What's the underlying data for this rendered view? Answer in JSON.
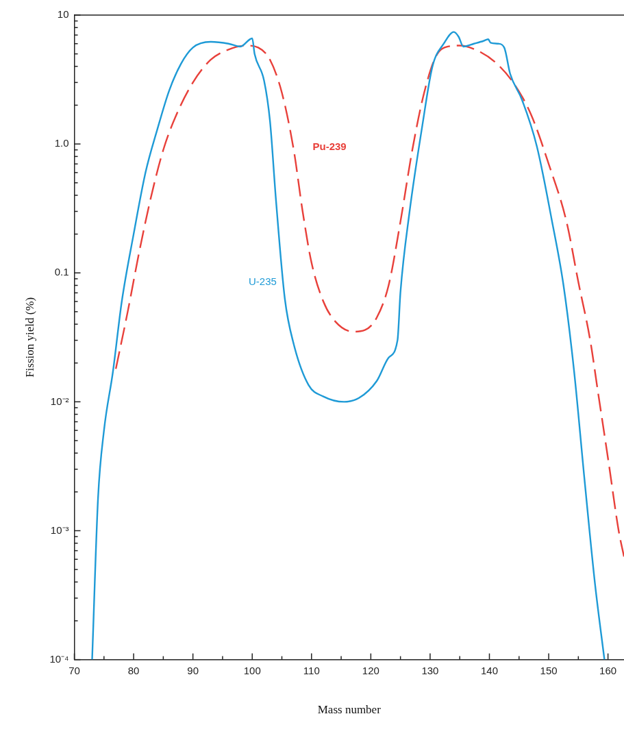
{
  "chart_data": {
    "type": "line",
    "xlabel": "Mass number",
    "ylabel": "Fission yield (%)",
    "log": "y",
    "grid": false,
    "legend": false,
    "marker": "none",
    "xlim": [
      70,
      162.7
    ],
    "ylim": [
      0.0001,
      10
    ],
    "xticks": [
      70,
      {
        "value": 75,
        "label": null
      },
      80,
      {
        "value": 85,
        "label": null
      },
      90,
      {
        "value": 95,
        "label": null
      },
      100,
      {
        "value": 105,
        "label": null
      },
      110,
      {
        "value": 115,
        "label": null
      },
      120,
      {
        "value": 125,
        "label": null
      },
      130,
      {
        "value": 135,
        "label": null
      },
      140,
      {
        "value": 145,
        "label": null
      },
      150,
      {
        "value": 155,
        "label": null
      },
      160
    ],
    "yticks": [
      {
        "value": 0.0001,
        "label": "10⁻⁴"
      },
      {
        "value": 0.0002,
        "label": null
      },
      {
        "value": 0.0003,
        "label": null
      },
      {
        "value": 0.0004,
        "label": null
      },
      {
        "value": 0.0005,
        "label": null
      },
      {
        "value": 0.0006,
        "label": null
      },
      {
        "value": 0.0007,
        "label": null
      },
      {
        "value": 0.0008,
        "label": null
      },
      {
        "value": 0.0009,
        "label": null
      },
      {
        "value": 0.001,
        "label": "10⁻³"
      },
      {
        "value": 0.002,
        "label": null
      },
      {
        "value": 0.003,
        "label": null
      },
      {
        "value": 0.004,
        "label": null
      },
      {
        "value": 0.005,
        "label": null
      },
      {
        "value": 0.006,
        "label": null
      },
      {
        "value": 0.007,
        "label": null
      },
      {
        "value": 0.008,
        "label": null
      },
      {
        "value": 0.009,
        "label": null
      },
      {
        "value": 0.01,
        "label": "10⁻²"
      },
      {
        "value": 0.02,
        "label": null
      },
      {
        "value": 0.03,
        "label": null
      },
      {
        "value": 0.04,
        "label": null
      },
      {
        "value": 0.05,
        "label": null
      },
      {
        "value": 0.06,
        "label": null
      },
      {
        "value": 0.07,
        "label": null
      },
      {
        "value": 0.08,
        "label": null
      },
      {
        "value": 0.09,
        "label": null
      },
      0.1,
      {
        "value": 0.2,
        "label": null
      },
      {
        "value": 0.3,
        "label": null
      },
      {
        "value": 0.4,
        "label": null
      },
      {
        "value": 0.5,
        "label": null
      },
      {
        "value": 0.6,
        "label": null
      },
      {
        "value": 0.7,
        "label": null
      },
      {
        "value": 0.8,
        "label": null
      },
      {
        "value": 0.9,
        "label": null
      },
      {
        "value": 1,
        "label": "1.0"
      },
      {
        "value": 2,
        "label": null
      },
      {
        "value": 3,
        "label": null
      },
      {
        "value": 4,
        "label": null
      },
      {
        "value": 5,
        "label": null
      },
      {
        "value": 6,
        "label": null
      },
      {
        "value": 7,
        "label": null
      },
      {
        "value": 8,
        "label": null
      },
      {
        "value": 9,
        "label": null
      },
      10
    ],
    "series": [
      {
        "name": "U-235",
        "color": "#1e9ad6",
        "line_style": "solid",
        "x": [
          73,
          74,
          75,
          76.5,
          78,
          80,
          82,
          84,
          86,
          88,
          90,
          93,
          96,
          98,
          100,
          100.4,
          102,
          103,
          104,
          105.5,
          107,
          109.5,
          112,
          115.5,
          118,
          121,
          123,
          124.5,
          125,
          126.5,
          128.7,
          130.4,
          132.3,
          134,
          134.8,
          135.6,
          137.4,
          139,
          139.8,
          140.2,
          141.5,
          142.5,
          143.5,
          145.5,
          148,
          150.5,
          152.5,
          154.3,
          156,
          157.8,
          159.4
        ],
        "values": [
          0.0001,
          0.0018,
          0.006,
          0.017,
          0.06,
          0.2,
          0.6,
          1.3,
          2.6,
          4.2,
          5.6,
          6.2,
          6,
          5.7,
          6.6,
          5,
          3.1,
          1.5,
          0.37,
          0.063,
          0.028,
          0.0135,
          0.011,
          0.01,
          0.0107,
          0.0145,
          0.022,
          0.03,
          0.071,
          0.29,
          1.4,
          4,
          6,
          7.4,
          6.8,
          5.7,
          6,
          6.3,
          6.5,
          6.1,
          6,
          5.6,
          3.5,
          2.2,
          0.96,
          0.26,
          0.08,
          0.017,
          0.0026,
          0.00039,
          0.0001
        ]
      },
      {
        "name": "Pu-239",
        "color": "#e8403a",
        "line_style": "dashed",
        "x": [
          77,
          79,
          81,
          83,
          85,
          87,
          90,
          93,
          96,
          99,
          101,
          103,
          105,
          107,
          108.5,
          110,
          112,
          114,
          117,
          119,
          121,
          123,
          125,
          127,
          129,
          131,
          133,
          135,
          138,
          141,
          144,
          147,
          150,
          153,
          155,
          157,
          158.3,
          160.1,
          161.8,
          162.7
        ],
        "values": [
          0.018,
          0.05,
          0.15,
          0.4,
          0.9,
          1.6,
          3,
          4.5,
          5.4,
          5.8,
          5.6,
          4.5,
          2.5,
          0.9,
          0.3,
          0.12,
          0.06,
          0.042,
          0.035,
          0.036,
          0.045,
          0.08,
          0.25,
          0.9,
          2.5,
          4.8,
          5.7,
          5.8,
          5.3,
          4.3,
          3,
          1.7,
          0.7,
          0.25,
          0.085,
          0.03,
          0.012,
          0.0034,
          0.001,
          0.00063
        ]
      }
    ]
  }
}
